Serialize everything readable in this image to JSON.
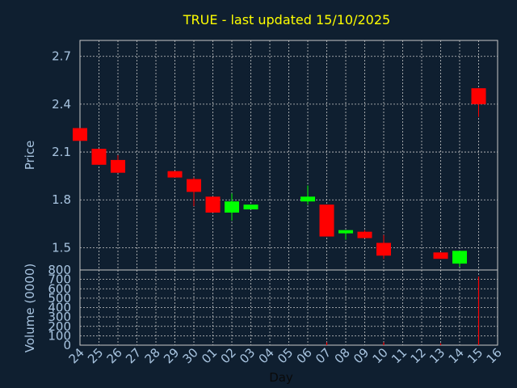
{
  "chart_data": {
    "type": "candlestick",
    "title": "TRUE - last updated 15/10/2025",
    "xlabel": "Day",
    "categories": [
      "24",
      "25",
      "26",
      "27",
      "28",
      "29",
      "30",
      "01",
      "02",
      "03",
      "04",
      "05",
      "06",
      "07",
      "08",
      "09",
      "10",
      "11",
      "12",
      "13",
      "14",
      "15",
      "16"
    ],
    "price_panel": {
      "ylabel": "Price",
      "ylim": [
        1.36,
        2.8
      ],
      "yticks": [
        "1.5",
        "1.8",
        "2.1",
        "2.4",
        "2.7"
      ],
      "grid": true
    },
    "volume_panel": {
      "ylabel": "Volume (0000)",
      "ylim": [
        0,
        800
      ],
      "yticks": [
        "0",
        "100",
        "200",
        "300",
        "400",
        "500",
        "600",
        "700",
        "800"
      ],
      "grid": true
    },
    "candles": [
      {
        "date": "24",
        "open": 2.25,
        "high": 2.25,
        "low": 2.17,
        "close": 2.17
      },
      {
        "date": "25",
        "open": 2.12,
        "high": 2.12,
        "low": 2.02,
        "close": 2.02
      },
      {
        "date": "26",
        "open": 2.05,
        "high": 2.08,
        "low": 1.97,
        "close": 1.97
      },
      {
        "date": "29",
        "open": 1.98,
        "high": 1.98,
        "low": 1.94,
        "close": 1.94
      },
      {
        "date": "30",
        "open": 1.93,
        "high": 1.94,
        "low": 1.76,
        "close": 1.85
      },
      {
        "date": "01",
        "open": 1.82,
        "high": 1.82,
        "low": 1.72,
        "close": 1.72
      },
      {
        "date": "02",
        "open": 1.72,
        "high": 1.84,
        "low": 1.67,
        "close": 1.79
      },
      {
        "date": "03",
        "open": 1.74,
        "high": 1.77,
        "low": 1.74,
        "close": 1.77
      },
      {
        "date": "06",
        "open": 1.79,
        "high": 1.89,
        "low": 1.77,
        "close": 1.82
      },
      {
        "date": "07",
        "open": 1.77,
        "high": 1.77,
        "low": 1.57,
        "close": 1.57
      },
      {
        "date": "08",
        "open": 1.59,
        "high": 1.61,
        "low": 1.55,
        "close": 1.61
      },
      {
        "date": "09",
        "open": 1.6,
        "high": 1.61,
        "low": 1.56,
        "close": 1.56
      },
      {
        "date": "10",
        "open": 1.53,
        "high": 1.58,
        "low": 1.43,
        "close": 1.45
      },
      {
        "date": "13",
        "open": 1.47,
        "high": 1.47,
        "low": 1.43,
        "close": 1.43
      },
      {
        "date": "14",
        "open": 1.4,
        "high": 1.48,
        "low": 1.38,
        "close": 1.48
      },
      {
        "date": "15",
        "open": 2.5,
        "high": 2.5,
        "low": 2.32,
        "close": 2.4
      }
    ],
    "volume": [
      {
        "date": "24",
        "value": 0
      },
      {
        "date": "25",
        "value": 0
      },
      {
        "date": "26",
        "value": 0
      },
      {
        "date": "29",
        "value": 0
      },
      {
        "date": "30",
        "value": 0
      },
      {
        "date": "01",
        "value": 0
      },
      {
        "date": "02",
        "value": 0
      },
      {
        "date": "03",
        "value": 0
      },
      {
        "date": "06",
        "value": 0
      },
      {
        "date": "07",
        "value": 30
      },
      {
        "date": "08",
        "value": 0
      },
      {
        "date": "09",
        "value": 0
      },
      {
        "date": "10",
        "value": 30
      },
      {
        "date": "13",
        "value": 20
      },
      {
        "date": "14",
        "value": 0
      },
      {
        "date": "15",
        "value": 730
      }
    ],
    "colors": {
      "background": "#0f1f30",
      "grid": "#c8c8c8",
      "axis_text": "#a8c4e0",
      "title": "#ffff00",
      "up": "#00ff00",
      "down": "#ff0000",
      "volume": "#ff0000"
    }
  }
}
